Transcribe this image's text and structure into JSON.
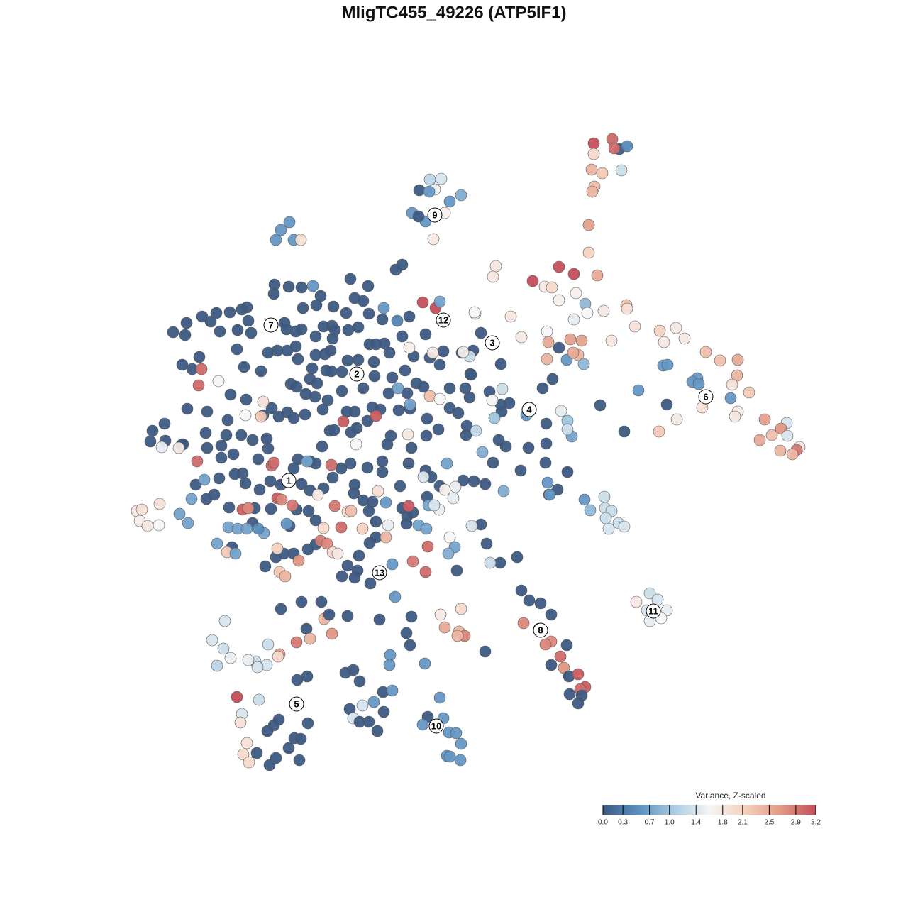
{
  "chart_data": {
    "type": "scatter",
    "title": "MligTC455_49226 (ATP5IF1)",
    "xlim": [
      0,
      1280
    ],
    "ylim": [
      1280,
      0
    ],
    "x": [
      558,
      567,
      387,
      407,
      425,
      386,
      494,
      519,
      348,
      341,
      324,
      305,
      285,
      244,
      263,
      261,
      297,
      310,
      335,
      350,
      354,
      334,
      344,
      368,
      378,
      391,
      405,
      417,
      425,
      427,
      401,
      404,
      417,
      445,
      456,
      468,
      472,
      491,
      505,
      469,
      466,
      458,
      445,
      440,
      437,
      420,
      410,
      418,
      431,
      447,
      460,
      467,
      482,
      490,
      505,
      521,
      542,
      530,
      527,
      549,
      553,
      571,
      528,
      512,
      525,
      500,
      489,
      482,
      462,
      455,
      444,
      430,
      414,
      405,
      393,
      383,
      371,
      347,
      325,
      321,
      292,
      264,
      232,
      215,
      212,
      233,
      258,
      292,
      312,
      319,
      340,
      356,
      376,
      378,
      364,
      342,
      331,
      346,
      366,
      381,
      396,
      414,
      420,
      437,
      445,
      454,
      465,
      471,
      495,
      503,
      518,
      536,
      548,
      551,
      546,
      539,
      518,
      494,
      481,
      469,
      456,
      437,
      425,
      418,
      435,
      445,
      500,
      499,
      512,
      525,
      520,
      530,
      574,
      567,
      539,
      564,
      576,
      580,
      601,
      618,
      602,
      562,
      578,
      574,
      587,
      597,
      583,
      600,
      567,
      539,
      520,
      512,
      500,
      488,
      470,
      446,
      452,
      577,
      606,
      620,
      625,
      634,
      656,
      663,
      662,
      690,
      634,
      646,
      658,
      657,
      703,
      713,
      745,
      770,
      769,
      800,
      786,
      774,
      734,
      695,
      684,
      668,
      653,
      678,
      686,
      705,
      729,
      644,
      600,
      608,
      620,
      602,
      582,
      573,
      530,
      521,
      506,
      504,
      490,
      482,
      500,
      522,
      434,
      445,
      414,
      400,
      374,
      389,
      408,
      382,
      359,
      323,
      302,
      291,
      276,
      309,
      312,
      329,
      356,
      327,
      290,
      256,
      271,
      257,
      281,
      706,
      678,
      664,
      651,
      667,
      707,
      706,
      718,
      837,
      863,
      873,
      884,
      866,
      837,
      834,
      849,
      876,
      838,
      835,
      830,
      830,
      606,
      622,
      613,
      591,
      605,
      650,
      634,
      581,
      600,
      627,
      611,
      590,
      408,
      396,
      389,
      414,
      424,
      699,
      695,
      788,
      809,
      751,
      842,
      768,
      778,
      812,
      788,
      825,
      828,
      851,
      883,
      884,
      809,
      771,
      773,
      804,
      820,
      862,
      895,
      930,
      953,
      936,
      965,
      788,
      815,
      771,
      799,
      823,
      808,
      720,
      735,
      670,
      995,
      1015,
      1040,
      1039,
      935,
      941,
      983,
      976,
      1032,
      1056,
      985,
      900,
      1030,
      990,
      1040,
      1036,
      954,
      929,
      1078,
      1109,
      1101,
      1110,
      1088,
      1071,
      1127,
      1123,
      1100,
      1117,
      940,
      880,
      846,
      770,
      791,
      800,
      806,
      800,
      765,
      779,
      742,
      916,
      927,
      897,
      912,
      940,
      932,
      916,
      735,
      746,
      762,
      777,
      738,
      760,
      777,
      799,
      769,
      790,
      777,
      795,
      802,
      815,
      825,
      818,
      803,
      820,
      815,
      620,
      603,
      625,
      596,
      614,
      633,
      643,
      650,
      630,
      634,
      649,
      557,
      580,
      535,
      573,
      578,
      550,
      549,
      599,
      684,
      621,
      650,
      627,
      647,
      655,
      645,
      490,
      498,
      487,
      507,
      540,
      553,
      511,
      493,
      527,
      541,
      498,
      507,
      520,
      532,
      396,
      425,
      453,
      457,
      464,
      468,
      432,
      437,
      418,
      394,
      392,
      378,
      376,
      360,
      350,
      363,
      317,
      299,
      315,
      325,
      306,
      433,
      419,
      365,
      334,
      341,
      339,
      393,
      386,
      377,
      434,
      415,
      424,
      407,
      348,
      362,
      343,
      351,
      389,
      380,
      422,
      596,
      614,
      620,
      284,
      280,
      308,
      371,
      368,
      346,
      252,
      228,
      278,
      288,
      270,
      253,
      265,
      193,
      200,
      197,
      208,
      224,
      225,
      322,
      335,
      348,
      372,
      306,
      320,
      332,
      342,
      350,
      391,
      397,
      412,
      383,
      386,
      448,
      467,
      484,
      502,
      530,
      533,
      472,
      490,
      495,
      481,
      511,
      456,
      452,
      461,
      469,
      476,
      544,
      547,
      544,
      576,
      553,
      582,
      600,
      603,
      391,
      421,
      394,
      402,
      404,
      433,
      561,
      578,
      606,
      620,
      575,
      630,
      597,
      627,
      642,
      639,
      604,
      619,
      612,
      590,
      601,
      634,
      641,
      632,
      665,
      691,
      710,
      680,
      671,
      697,
      694,
      708,
      662,
      653,
      669,
      577,
      610,
      541,
      560,
      772,
      775,
      824,
      832,
      852,
      853,
      862,
      858,
      854,
      872,
      880,
      364,
      441
    ],
    "y": [
      380,
      373,
      401,
      404,
      405,
      414,
      393,
      403,
      433,
      436,
      440,
      441,
      446,
      468,
      455,
      472,
      453,
      467,
      465,
      452,
      469,
      492,
      517,
      523,
      497,
      494,
      494,
      488,
      464,
      434,
      455,
      464,
      467,
      474,
      460,
      459,
      465,
      465,
      461,
      477,
      494,
      499,
      500,
      519,
      534,
      506,
      541,
      545,
      555,
      540,
      522,
      523,
      524,
      508,
      507,
      485,
      484,
      485,
      510,
      497,
      532,
      522,
      530,
      547,
      574,
      580,
      580,
      551,
      564,
      577,
      559,
      584,
      589,
      581,
      587,
      575,
      585,
      563,
      556,
      592,
      580,
      576,
      597,
      607,
      622,
      621,
      626,
      631,
      628,
      613,
      613,
      620,
      618,
      632,
      647,
      667,
      668,
      681,
      690,
      678,
      683,
      660,
      647,
      650,
      653,
      629,
      607,
      606,
      609,
      603,
      593,
      577,
      554,
      614,
      626,
      650,
      659,
      653,
      660,
      673,
      688,
      691,
      682,
      718,
      720,
      733,
      683,
      695,
      705,
      707,
      720,
      735,
      727,
      716,
      665,
      685,
      653,
      631,
      614,
      605,
      590,
      578,
      576,
      554,
      540,
      545,
      502,
      471,
      474,
      450,
      442,
      424,
      420,
      441,
      432,
      430,
      417,
      446,
      504,
      514,
      495,
      547,
      547,
      527,
      560,
      552,
      575,
      582,
      600,
      613,
      620,
      629,
      631,
      625,
      652,
      665,
      690,
      697,
      663,
      652,
      682,
      678,
      677,
      739,
      766,
      793,
      785,
      804,
      663,
      672,
      685,
      700,
      722,
      738,
      757,
      765,
      783,
      804,
      797,
      812,
      814,
      822,
      774,
      767,
      780,
      780,
      798,
      785,
      741,
      717,
      716,
      715,
      697,
      703,
      683,
      674,
      645,
      640,
      737,
      771,
      610,
      627,
      520,
      514,
      503,
      513,
      469,
      528,
      497,
      494,
      580,
      570,
      568,
      202,
      196,
      210,
      206,
      209,
      217,
      239,
      244,
      240,
      263,
      270,
      317,
      356,
      253,
      252,
      267,
      268,
      270,
      275,
      284,
      300,
      312,
      300,
      337,
      305,
      313,
      324,
      338,
      338,
      338,
      375,
      390,
      376,
      386,
      396,
      388,
      404,
      405,
      413,
      423,
      428,
      441,
      438,
      430,
      435,
      450,
      467,
      482,
      478,
      480,
      480,
      460,
      466,
      462,
      482,
      477,
      490,
      500,
      506,
      507,
      513,
      497,
      446,
      475,
      442,
      496,
      508,
      507,
      529,
      515,
      514,
      533,
      538,
      542,
      553,
      541,
      550,
      561,
      574,
      580,
      587,
      591,
      608,
      591,
      596,
      604,
      614,
      613,
      620,
      630,
      634,
      635,
      640,
      570,
      608,
      571,
      597,
      579,
      593,
      615,
      605,
      547,
      534,
      585,
      836,
      845,
      848,
      860,
      860,
      871,
      875,
      832,
      846,
      850,
      866,
      878,
      886,
      904,
      909,
      908,
      925,
      937,
      941,
      953,
      950,
      968,
      971,
      978,
      980,
      991,
      983,
      1010,
      1012,
      1021,
      1024,
      1032,
      1033,
      1048,
      1065,
      1066,
      1071,
      841,
      869,
      873,
      892,
      909,
      923,
      937,
      935,
      918,
      866,
      858,
      884,
      890,
      896,
      896,
      868,
      944,
      948,
      960,
      975,
      973,
      994,
      999,
      989,
      1003,
      1012,
      1017,
      1017,
      1030,
      858,
      848,
      848,
      872,
      866,
      893,
      886,
      900,
      905,
      922,
      925,
      908,
      937,
      932,
      930,
      940,
      875,
      902,
      914,
      927,
      938,
      953,
      958,
      986,
      982,
      1006,
      1018,
      1014,
      1022,
      1030,
      1019,
      1040,
      1041,
      1054,
      1047,
      1061,
      1063,
      1074,
      1068,
      1078,
      1071,
      426,
      434,
      425,
      520,
      543,
      537,
      566,
      587,
      585,
      631,
      630,
      650,
      676,
      703,
      724,
      737,
      720,
      718,
      734,
      741,
      740,
      710,
      743,
      745,
      745,
      751,
      766,
      778,
      780,
      718,
      716,
      702,
      704,
      712,
      656,
      652,
      697,
      655,
      594,
      626,
      586,
      692,
      713,
      721,
      720,
      743,
      745,
      744,
      762,
      766,
      778,
      780,
      757,
      740,
      708,
      713,
      795,
      791,
      806,
      770,
      773,
      790,
      806,
      812,
      738,
      650,
      547,
      570,
      558,
      562,
      612,
      653,
      672,
      690,
      686,
      702,
      712,
      718,
      712,
      740,
      745,
      757,
      771,
      780,
      741,
      793,
      692,
      637,
      607,
      589,
      564,
      548,
      502,
      496,
      440,
      490,
      497,
      434,
      452,
      680,
      697,
      704,
      719,
      700,
      716,
      720,
      745,
      730,
      737,
      742,
      745,
      403
    ],
    "values": [
      0,
      0,
      0,
      0,
      0,
      0,
      0,
      0,
      0,
      0,
      0,
      0,
      0,
      0,
      0,
      0,
      0,
      0,
      0,
      0,
      0,
      0,
      0,
      0,
      0,
      0,
      0,
      0,
      0,
      0,
      0,
      0,
      0,
      0,
      0,
      0,
      0,
      0,
      0,
      0,
      0,
      0,
      0,
      0,
      0,
      0,
      0,
      0,
      0,
      0,
      0,
      0,
      0,
      0,
      0,
      0,
      0,
      0,
      0,
      0,
      0,
      0,
      0,
      0,
      0,
      0,
      0,
      0,
      0,
      0,
      0,
      0,
      0,
      0,
      0,
      0,
      0,
      0,
      0,
      0,
      0,
      0,
      0,
      0,
      0,
      0,
      0,
      0,
      0,
      0,
      0,
      0,
      0,
      0,
      0,
      0,
      0,
      0,
      0,
      0,
      0,
      0,
      0,
      0,
      0,
      0,
      0,
      0,
      0,
      0,
      0,
      0,
      0,
      0,
      0,
      0,
      0,
      0,
      0,
      0,
      0,
      0,
      0,
      0,
      0,
      0,
      0,
      0,
      0,
      0,
      0,
      0,
      0,
      0,
      0,
      0,
      0,
      0,
      0,
      0,
      0,
      0,
      0,
      0,
      0,
      0,
      0,
      0,
      0,
      0,
      0,
      0,
      0,
      0,
      0,
      0,
      0,
      0,
      0,
      0,
      0,
      0,
      0,
      0,
      0,
      0,
      0,
      0,
      0,
      0,
      0,
      0,
      0,
      0,
      0,
      0,
      0,
      0,
      0,
      0,
      0,
      0,
      0,
      0,
      0,
      0,
      0,
      0,
      0,
      0,
      0,
      0,
      0,
      0,
      0,
      0,
      0,
      0,
      0,
      0,
      0,
      0,
      0,
      0,
      0,
      0,
      0,
      0,
      0,
      0,
      0,
      0,
      0,
      0,
      0,
      0,
      0,
      0,
      0,
      0,
      0,
      0,
      0,
      0,
      0,
      0,
      0,
      0,
      0,
      0,
      0,
      0,
      0,
      3.2,
      3.0,
      0,
      0.5,
      3.0,
      2.0,
      2.4,
      2.2,
      1.3,
      2.3,
      2.4,
      2.6,
      2.1,
      1.2,
      1.4,
      1.5,
      0,
      0.6,
      0.8,
      0.6,
      0.6,
      0.6,
      1.7,
      1.8,
      0,
      0.6,
      0.6,
      0.6,
      0.6,
      1.9,
      1.8,
      1.8,
      3.2,
      3.2,
      3.2,
      2.5,
      1.8,
      2.0,
      1.7,
      1.7,
      0.9,
      1.6,
      1.8,
      2.3,
      1.9,
      1.5,
      1.6,
      2.5,
      2.6,
      2.6,
      1.8,
      1.9,
      2.1,
      1.8,
      1.8,
      1.8,
      0,
      2.4,
      2.4,
      0.6,
      0.9,
      2.5,
      1.8,
      1.8,
      1.8,
      2.3,
      2.3,
      2.5,
      2.4,
      0.6,
      0.6,
      0.6,
      0.6,
      1.9,
      2.2,
      0.6,
      0.6,
      0.6,
      1.9,
      1.8,
      1.8,
      1.8,
      2.2,
      2.6,
      1.4,
      2.7,
      1.4,
      2.3,
      2.5,
      1.8,
      2.9,
      2.4,
      2.4,
      0,
      0,
      0,
      0,
      1.5,
      1.0,
      0.7,
      1.3,
      0,
      0,
      0.6,
      1.3,
      1.4,
      1.8,
      1.4,
      1.5,
      1.6,
      1.5,
      0,
      0,
      0,
      0,
      2.8,
      0,
      2.8,
      0,
      2.8,
      3.0,
      0,
      2.7,
      0,
      3.1,
      3.1,
      3.0,
      0,
      0,
      0,
      0.6,
      0,
      0.6,
      0.6,
      0,
      0.6,
      0.6,
      0.6,
      0.6,
      0.6,
      0.6,
      0.6,
      0,
      0,
      0,
      0,
      0.6,
      0.6,
      0.6,
      0,
      1.8,
      2.0,
      2.5,
      2.4,
      2.8,
      2.4,
      0,
      0,
      0,
      0,
      0,
      0.6,
      1.4,
      0,
      0.6,
      0,
      1.4,
      0,
      0,
      0,
      0,
      0,
      0,
      2.4,
      0,
      2.7,
      0,
      2.4,
      2.9,
      2.6,
      2.0,
      1.3,
      1.4,
      1.3,
      1.5,
      1.4,
      1.4,
      1.4,
      1.3,
      1.5,
      1.2,
      0,
      0,
      1.3,
      3.2,
      1.4,
      1.9,
      0,
      0,
      0,
      0,
      0,
      0,
      0,
      1.9,
      0,
      2.0,
      2.0,
      0,
      0,
      0,
      3.2,
      3.2,
      0.7,
      3.0,
      3.0,
      1.6,
      1.9,
      2.2,
      1.6,
      1.8,
      1.5,
      3.0,
      0.7,
      0.7,
      0.7,
      0.7,
      1.8,
      1.9,
      1.7,
      1.8,
      1.6,
      1.9,
      0.7,
      0.7,
      0.7,
      0.7,
      0.7,
      2.2,
      0.7,
      3.1,
      2.8,
      3.1,
      2.8,
      2.9,
      3.0,
      3.0,
      1.8,
      3.0,
      3.1,
      1.6,
      3.1,
      1.9,
      2.9,
      2.0,
      2.3,
      3.0,
      2.1,
      2.0,
      2.9,
      2.8,
      2.0,
      1.8,
      2.4,
      1.5,
      0.6,
      3.1,
      0.6,
      2.9,
      3.0,
      3.0,
      2.1,
      2.7,
      2.2,
      2.4,
      0.6,
      0.7,
      0.7,
      0.7,
      2.3,
      1.6,
      1.8,
      0.7,
      1.4,
      1.7,
      1.5,
      1.5,
      0.7,
      1.5,
      1.4,
      0.7,
      0.7,
      1.6,
      0.7,
      0.8,
      1.4,
      1.3,
      0.8,
      0.8,
      1.2,
      1.0,
      1.6,
      1.3,
      1.3,
      1.7,
      1.6,
      1.7,
      1.8,
      0.6,
      0.4,
      0.6,
      0.6,
      0.6,
      0.9,
      1.3,
      1.3,
      1.3,
      1.4,
      1.3,
      1.3,
      1.4,
      0.5,
      0.6
    ],
    "clusters": [
      {
        "label": "1",
        "x": 407,
        "y": 677
      },
      {
        "label": "2",
        "x": 503,
        "y": 527
      },
      {
        "label": "3",
        "x": 694,
        "y": 483
      },
      {
        "label": "4",
        "x": 746,
        "y": 577
      },
      {
        "label": "5",
        "x": 418,
        "y": 992
      },
      {
        "label": "6",
        "x": 995,
        "y": 559
      },
      {
        "label": "7",
        "x": 382,
        "y": 458
      },
      {
        "label": "8",
        "x": 762,
        "y": 888
      },
      {
        "label": "9",
        "x": 613,
        "y": 303
      },
      {
        "label": "10",
        "x": 615,
        "y": 1023
      },
      {
        "label": "11",
        "x": 921,
        "y": 861
      },
      {
        "label": "12",
        "x": 625,
        "y": 451
      },
      {
        "label": "13",
        "x": 535,
        "y": 807
      }
    ],
    "colorbar": {
      "title": "Variance, Z-scaled",
      "lim": [
        0,
        3.2
      ],
      "ticks": [
        {
          "value": 0,
          "label": "0.0"
        },
        0.3,
        0.7,
        {
          "value": 1,
          "label": "1.0"
        },
        1.4,
        1.8,
        2.1,
        2.5,
        2.9,
        3.2
      ],
      "colors": [
        "#3d5a82",
        "#5a8fc0",
        "#a9cbe2",
        "#f5f5f5",
        "#f6d0bd",
        "#e29a86",
        "#c44e5a"
      ]
    }
  }
}
